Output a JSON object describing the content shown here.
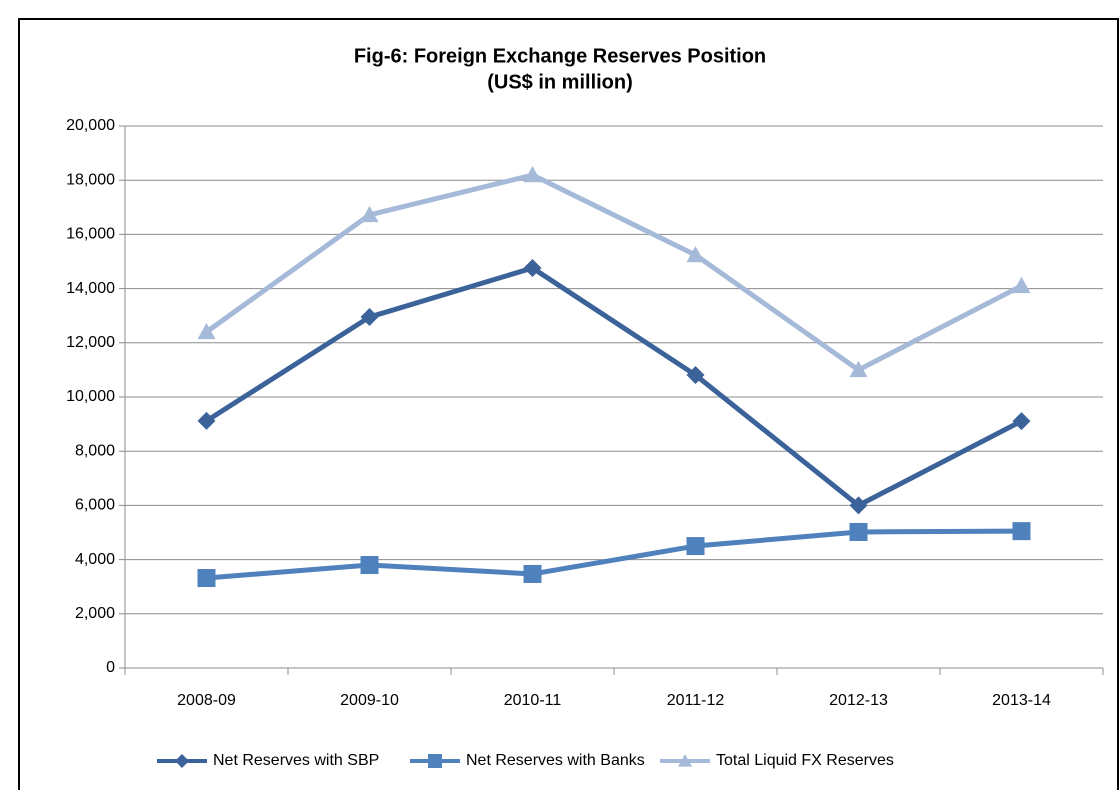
{
  "chart_data": {
    "type": "line",
    "title": "Fig-6: Foreign Exchange Reserves Position",
    "subtitle": "(US$  in million)",
    "categories": [
      "2008-09",
      "2009-10",
      "2010-11",
      "2011-12",
      "2012-13",
      "2013-14"
    ],
    "series": [
      {
        "name": "Net Reserves with SBP",
        "color": "#3b6399",
        "marker": "diamond",
        "values": [
          9120,
          12950,
          14760,
          10810,
          6000,
          9110
        ]
      },
      {
        "name": "Net Reserves with Banks",
        "color": "#4f81bd",
        "marker": "square",
        "values": [
          3320,
          3800,
          3470,
          4500,
          5020,
          5050
        ]
      },
      {
        "name": "Total Liquid FX Reserves",
        "color": "#a5b9d9",
        "marker": "triangle",
        "values": [
          12400,
          16720,
          18190,
          15240,
          11000,
          14100
        ]
      }
    ],
    "ylim": [
      0,
      20000
    ],
    "yticks": [
      0,
      {
        "value": 2000,
        "label": "2,000"
      },
      {
        "value": 4000,
        "label": "4,000"
      },
      {
        "value": 6000,
        "label": "6,000"
      },
      {
        "value": 8000,
        "label": "8,000"
      },
      {
        "value": 10000,
        "label": "10,000"
      },
      {
        "value": 12000,
        "label": "12,000"
      },
      {
        "value": 14000,
        "label": "14,000"
      },
      {
        "value": 16000,
        "label": "16,000"
      },
      {
        "value": 18000,
        "label": "18,000"
      },
      {
        "value": 20000,
        "label": "20,000"
      }
    ],
    "grid": true,
    "legend": "bottom"
  }
}
